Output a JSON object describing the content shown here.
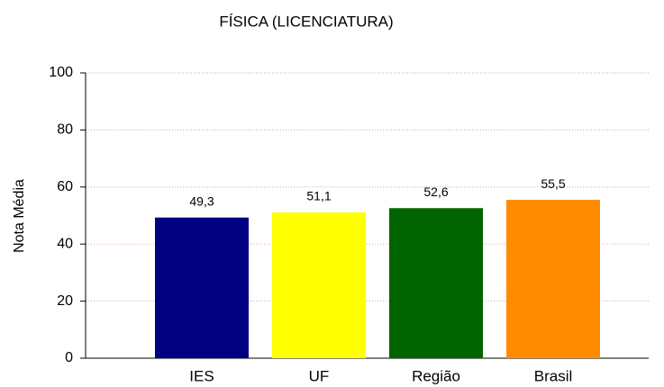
{
  "chart_data": {
    "type": "bar",
    "title": "FÍSICA (LICENCIATURA)",
    "y_label": "Nota Média",
    "categories": [
      "IES",
      "UF",
      "Região",
      "Brasil"
    ],
    "values": [
      49.3,
      51.1,
      52.6,
      55.5
    ],
    "value_labels": [
      "49,3",
      "51,1",
      "52,6",
      "55,5"
    ],
    "colors": [
      "#000080",
      "#ffff00",
      "#006400",
      "#ff8c00"
    ],
    "ylim": [
      0,
      100
    ],
    "yticks": [
      0,
      20,
      40,
      60,
      80,
      100
    ],
    "grid": true
  }
}
